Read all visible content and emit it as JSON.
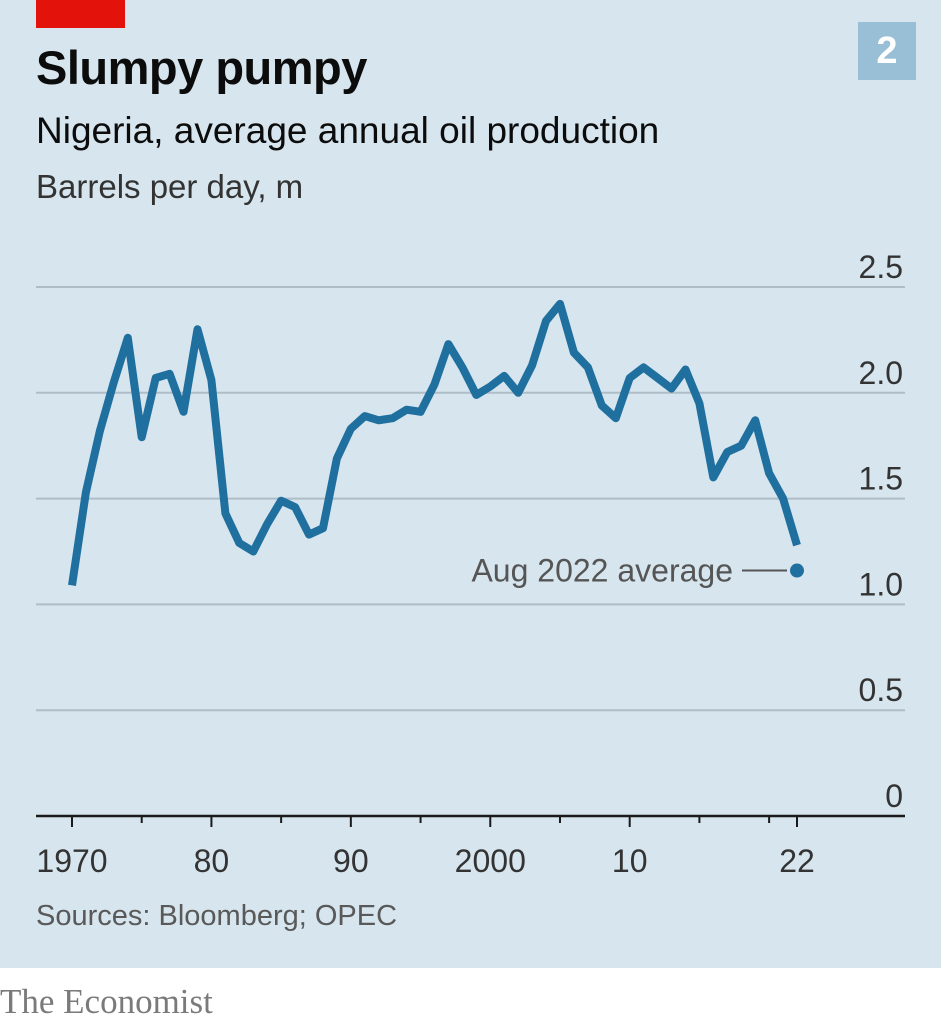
{
  "header": {
    "title": "Slumpy pumpy",
    "subtitle": "Nigeria, average annual oil production",
    "unit": "Barrels per day, m",
    "chart_number": "2"
  },
  "source": "Sources: Bloomberg; OPEC",
  "publisher": "The Economist",
  "colors": {
    "background": "#d6e5ee",
    "line": "#1f6f9f",
    "accent_red": "#e3120b",
    "badge": "#98bfd6",
    "grid": "#aebdc6"
  },
  "chart_data": {
    "type": "line",
    "title": "Slumpy pumpy",
    "subtitle": "Nigeria, average annual oil production",
    "ylabel": "Barrels per day, m",
    "xlim": [
      1969,
      2028
    ],
    "ylim": [
      0,
      2.5
    ],
    "grid": true,
    "y_ticks": [
      {
        "value": 2.5,
        "label": "2.5"
      },
      {
        "value": 2.0,
        "label": "2.0"
      },
      {
        "value": 1.5,
        "label": "1.5"
      },
      {
        "value": 1.0,
        "label": "1.0"
      },
      {
        "value": 0.5,
        "label": "0.5"
      },
      {
        "value": 0,
        "label": "0"
      }
    ],
    "x_ticks": [
      {
        "value": 1970,
        "label": "1970"
      },
      {
        "value": 1980,
        "label": "80"
      },
      {
        "value": 1990,
        "label": "90"
      },
      {
        "value": 2000,
        "label": "2000"
      },
      {
        "value": 2010,
        "label": "10"
      },
      {
        "value": 2022,
        "label": "22"
      }
    ],
    "x_minor_ticks": [
      1975,
      1985,
      1995,
      2005,
      2015,
      2020
    ],
    "series": [
      {
        "x": [
          1970,
          1971,
          1972,
          1973,
          1974,
          1975,
          1976,
          1977,
          1978,
          1979,
          1980,
          1981,
          1982,
          1983,
          1984,
          1985,
          1986,
          1987,
          1988,
          1989,
          1990,
          1991,
          1992,
          1993,
          1994,
          1995,
          1996,
          1997,
          1998,
          1999,
          2000,
          2001,
          2002,
          2003,
          2004,
          2005,
          2006,
          2007,
          2008,
          2009,
          2010,
          2011,
          2012,
          2013,
          2014,
          2015,
          2016,
          2017,
          2018,
          2019,
          2020,
          2021,
          2022
        ],
        "values": [
          1.09,
          1.53,
          1.82,
          2.05,
          2.26,
          1.79,
          2.07,
          2.09,
          1.91,
          2.3,
          2.06,
          1.43,
          1.29,
          1.25,
          1.38,
          1.49,
          1.46,
          1.33,
          1.36,
          1.69,
          1.83,
          1.89,
          1.87,
          1.88,
          1.92,
          1.91,
          2.04,
          2.23,
          2.12,
          1.99,
          2.03,
          2.08,
          2.0,
          2.13,
          2.34,
          2.42,
          2.19,
          2.12,
          1.94,
          1.88,
          2.07,
          2.12,
          2.07,
          2.02,
          2.11,
          1.95,
          1.6,
          1.72,
          1.75,
          1.87,
          1.62,
          1.5,
          1.28
        ]
      }
    ],
    "annotations": [
      {
        "label": "Aug 2022 average",
        "x": 2022,
        "value": 1.16
      }
    ]
  }
}
